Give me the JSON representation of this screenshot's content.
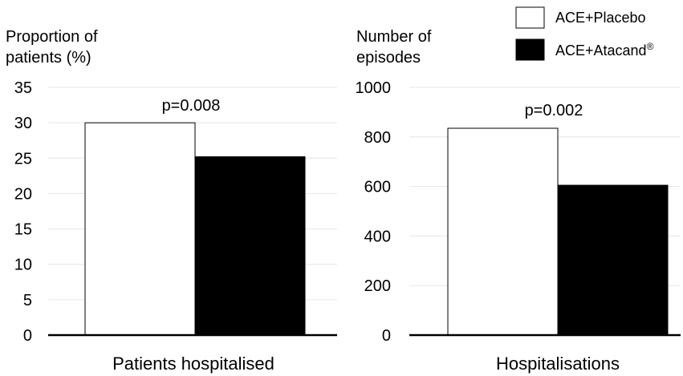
{
  "legend": {
    "position": "top-right",
    "items": [
      {
        "label": "ACE+Placebo",
        "color": "#ffffff",
        "border": "#000000"
      },
      {
        "label": "ACE+Atacand",
        "superscript": "®",
        "color": "#000000",
        "border": "#000000"
      }
    ]
  },
  "chart_data": [
    {
      "type": "bar",
      "ylabel": [
        "Proportion of",
        "patients (%)"
      ],
      "xlabel": "Patients hospitalised",
      "categories": [
        "Patients hospitalised"
      ],
      "ylim": [
        0,
        35
      ],
      "yticks": [
        0,
        5,
        10,
        15,
        20,
        25,
        30,
        35
      ],
      "grid": true,
      "series": [
        {
          "name": "ACE+Placebo",
          "values": [
            30
          ]
        },
        {
          "name": "ACE+Atacand®",
          "values": [
            25.2
          ]
        }
      ],
      "annotation": "p=0.008"
    },
    {
      "type": "bar",
      "ylabel": [
        "Number of",
        "episodes"
      ],
      "xlabel": "Hospitalisations",
      "categories": [
        "Hospitalisations"
      ],
      "ylim": [
        0,
        1000
      ],
      "yticks": [
        0,
        200,
        400,
        600,
        800,
        1000
      ],
      "grid": true,
      "series": [
        {
          "name": "ACE+Placebo",
          "values": [
            835
          ]
        },
        {
          "name": "ACE+Atacand®",
          "values": [
            605
          ]
        }
      ],
      "annotation": "p=0.002"
    }
  ]
}
